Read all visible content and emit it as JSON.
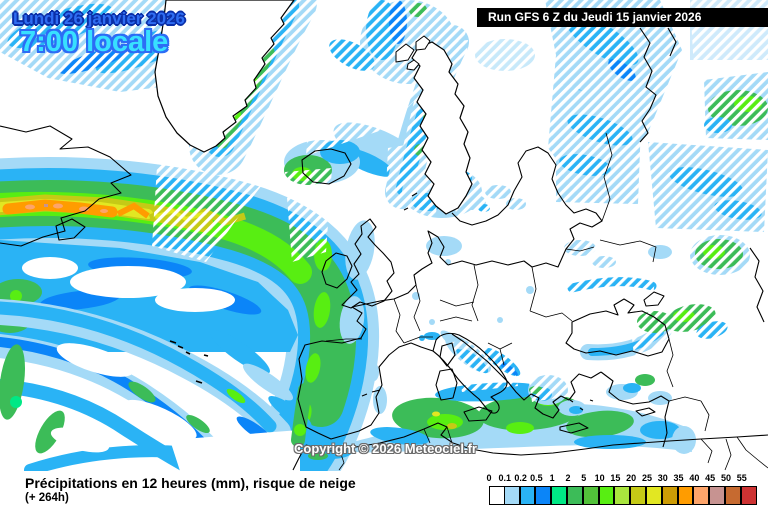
{
  "header": {
    "date_line": "Lundi 26 janvier 2026",
    "time_line": "7:00 locale",
    "run_info": "Run GFS 6 Z du Jeudi 15 janvier 2026"
  },
  "map": {
    "copyright": "Copyright © 2026 Meteociel.fr"
  },
  "footer": {
    "caption": "Précipitations en 12 heures (mm), risque de neige",
    "forecast_offset": "(+ 264h)"
  },
  "legend": {
    "values": [
      "0",
      "0.1",
      "0.2",
      "0.5",
      "1",
      "2",
      "5",
      "10",
      "15",
      "20",
      "25",
      "30",
      "35",
      "40",
      "45",
      "50",
      "55"
    ],
    "colors": [
      "#ffffff",
      "#a4daf7",
      "#2ab3f5",
      "#0b85f8",
      "#00e885",
      "#3cbc58",
      "#52c23a",
      "#58ee12",
      "#a9e53e",
      "#c5ca16",
      "#e2e722",
      "#cd9c05",
      "#ff9c00",
      "#fda46a",
      "#c79391",
      "#c66a30",
      "#cd3333"
    ]
  },
  "accent_colors": {
    "date_text": "#2f6df2",
    "time_text": "#38e0ff",
    "run_box_bg": "#000000",
    "run_box_text": "#ffffff",
    "snow_hatch": "#ffffff"
  }
}
